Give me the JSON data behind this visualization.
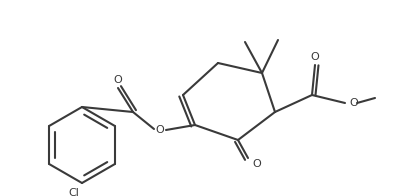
{
  "bg_color": "#ffffff",
  "line_color": "#3a3a3a",
  "line_width": 1.5,
  "figsize": [
    3.97,
    1.96
  ],
  "dpi": 100,
  "xlim": [
    0,
    397
  ],
  "ylim": [
    0,
    196
  ]
}
